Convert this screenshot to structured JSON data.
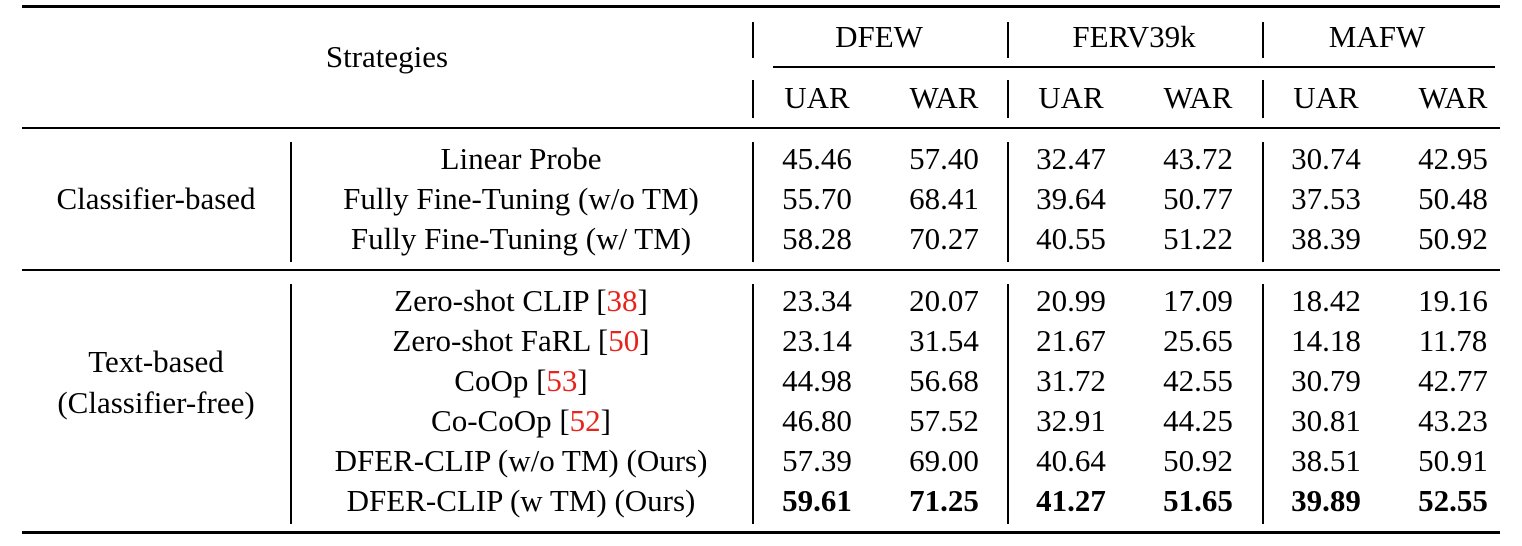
{
  "header": {
    "strategies": "Strategies",
    "datasets": [
      "DFEW",
      "FERV39k",
      "MAFW"
    ],
    "metrics": [
      "UAR",
      "WAR",
      "UAR",
      "WAR",
      "UAR",
      "WAR"
    ]
  },
  "groups": [
    {
      "label_lines": [
        "Classifier-based"
      ],
      "rows": [
        {
          "method": "Linear Probe",
          "cite": "",
          "suffix": "",
          "values": [
            "45.46",
            "57.40",
            "32.47",
            "43.72",
            "30.74",
            "42.95"
          ],
          "bold": false
        },
        {
          "method": "Fully Fine-Tuning (w/o TM)",
          "cite": "",
          "suffix": "",
          "values": [
            "55.70",
            "68.41",
            "39.64",
            "50.77",
            "37.53",
            "50.48"
          ],
          "bold": false
        },
        {
          "method": "Fully Fine-Tuning (w/ TM)",
          "cite": "",
          "suffix": "",
          "values": [
            "58.28",
            "70.27",
            "40.55",
            "51.22",
            "38.39",
            "50.92"
          ],
          "bold": false
        }
      ]
    },
    {
      "label_lines": [
        "Text-based",
        "(Classifier-free)"
      ],
      "rows": [
        {
          "method": "Zero-shot CLIP [",
          "cite": "38",
          "suffix": "]",
          "values": [
            "23.34",
            "20.07",
            "20.99",
            "17.09",
            "18.42",
            "19.16"
          ],
          "bold": false
        },
        {
          "method": "Zero-shot FaRL [",
          "cite": "50",
          "suffix": "]",
          "values": [
            "23.14",
            "31.54",
            "21.67",
            "25.65",
            "14.18",
            "11.78"
          ],
          "bold": false
        },
        {
          "method": "CoOp [",
          "cite": "53",
          "suffix": "]",
          "values": [
            "44.98",
            "56.68",
            "31.72",
            "42.55",
            "30.79",
            "42.77"
          ],
          "bold": false
        },
        {
          "method": "Co-CoOp [",
          "cite": "52",
          "suffix": "]",
          "values": [
            "46.80",
            "57.52",
            "32.91",
            "44.25",
            "30.81",
            "43.23"
          ],
          "bold": false
        },
        {
          "method": "DFER-CLIP (w/o TM) (Ours)",
          "cite": "",
          "suffix": "",
          "values": [
            "57.39",
            "69.00",
            "40.64",
            "50.92",
            "38.51",
            "50.91"
          ],
          "bold": false
        },
        {
          "method": "DFER-CLIP (w TM) (Ours)",
          "cite": "",
          "suffix": "",
          "values": [
            "59.61",
            "71.25",
            "41.27",
            "51.65",
            "39.89",
            "52.55"
          ],
          "bold": true
        }
      ]
    }
  ]
}
